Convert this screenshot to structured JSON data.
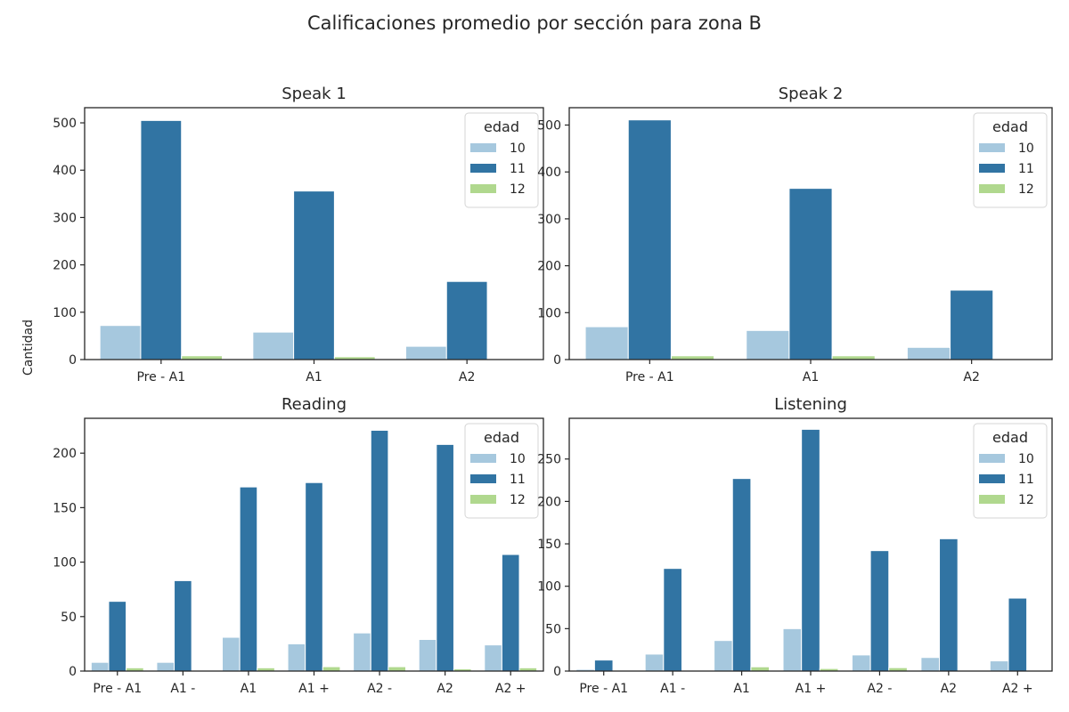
{
  "figure": {
    "title": "Calificaciones promedio por sección para zona B",
    "ylabel": "Cantidad",
    "legend_title": "edad",
    "legend_entries": [
      "10",
      "11",
      "12"
    ],
    "colors": {
      "10": "#a6c8de",
      "11": "#3174a3",
      "12": "#b0d88e"
    }
  },
  "chart_data": [
    {
      "type": "bar",
      "title": "Speak 1",
      "categories": [
        "Pre - A1",
        "A1",
        "A2"
      ],
      "series": [
        {
          "name": "10",
          "values": [
            72,
            58,
            28
          ]
        },
        {
          "name": "11",
          "values": [
            505,
            356,
            165
          ]
        },
        {
          "name": "12",
          "values": [
            8,
            6,
            0
          ]
        }
      ],
      "ylim": [
        0,
        532
      ],
      "yticks": [
        0,
        100,
        200,
        300,
        400,
        500
      ],
      "legend": "top-right"
    },
    {
      "type": "bar",
      "title": "Speak 2",
      "categories": [
        "Pre - A1",
        "A1",
        "A2"
      ],
      "series": [
        {
          "name": "10",
          "values": [
            70,
            62,
            26
          ]
        },
        {
          "name": "11",
          "values": [
            511,
            365,
            148
          ]
        },
        {
          "name": "12",
          "values": [
            8,
            8,
            0
          ]
        }
      ],
      "ylim": [
        0,
        537
      ],
      "yticks": [
        0,
        100,
        200,
        300,
        400,
        500
      ],
      "legend": "top-right"
    },
    {
      "type": "bar",
      "title": "Reading",
      "categories": [
        "Pre - A1",
        "A1 -",
        "A1",
        "A1 +",
        "A2 -",
        "A2",
        "A2 +"
      ],
      "series": [
        {
          "name": "10",
          "values": [
            8,
            8,
            31,
            25,
            35,
            29,
            24
          ]
        },
        {
          "name": "11",
          "values": [
            64,
            83,
            169,
            173,
            221,
            208,
            107
          ]
        },
        {
          "name": "12",
          "values": [
            3,
            0,
            3,
            4,
            4,
            2,
            3
          ]
        }
      ],
      "ylim": [
        0,
        232
      ],
      "yticks": [
        0,
        50,
        100,
        150,
        200
      ],
      "legend": "top-right"
    },
    {
      "type": "bar",
      "title": "Listening",
      "categories": [
        "Pre - A1",
        "A1 -",
        "A1",
        "A1 +",
        "A2 -",
        "A2",
        "A2 +"
      ],
      "series": [
        {
          "name": "10",
          "values": [
            2,
            20,
            36,
            50,
            19,
            16,
            12
          ]
        },
        {
          "name": "11",
          "values": [
            13,
            121,
            227,
            285,
            142,
            156,
            86
          ]
        },
        {
          "name": "12",
          "values": [
            0,
            0,
            5,
            3,
            4,
            0,
            0
          ]
        }
      ],
      "ylim": [
        0,
        298
      ],
      "yticks": [
        0,
        50,
        100,
        150,
        200,
        250
      ],
      "legend": "top-right"
    }
  ]
}
